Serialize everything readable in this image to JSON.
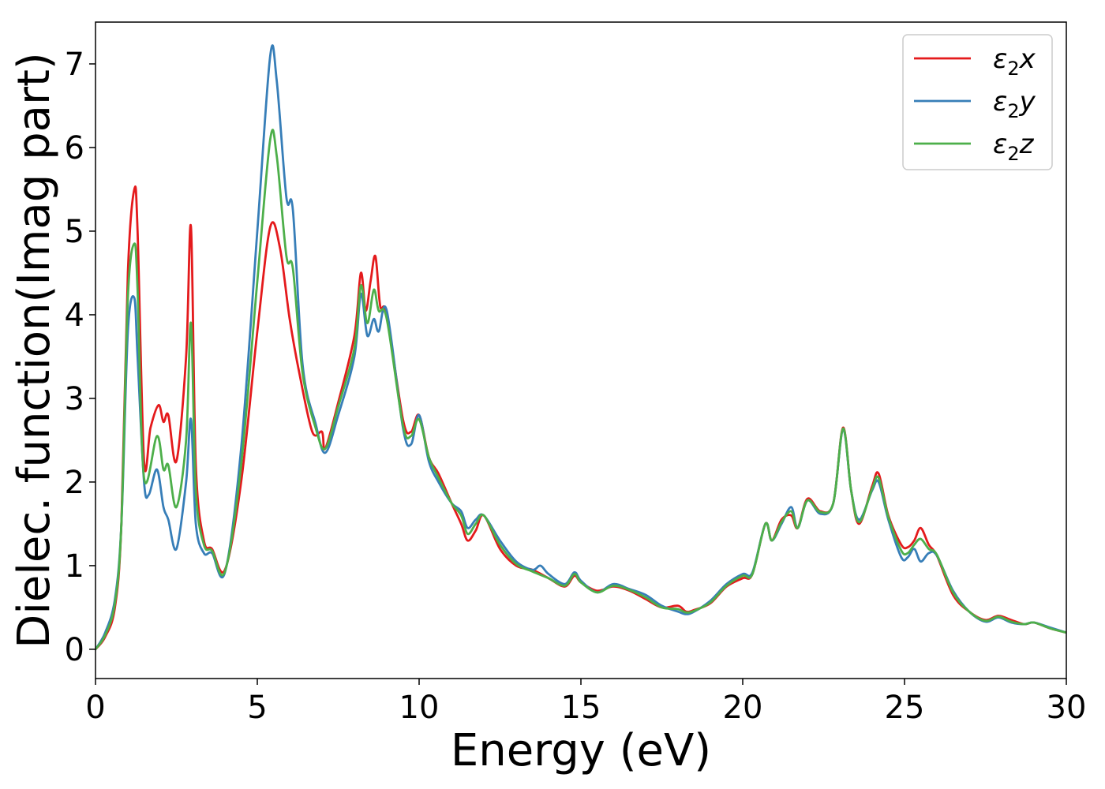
{
  "chart_data": {
    "type": "line",
    "xlabel": "Energy (eV)",
    "ylabel": "Dielec. function(Imag part)",
    "xlim": [
      0,
      30
    ],
    "ylim": [
      -0.35,
      7.5
    ],
    "xticks": [
      0,
      5,
      10,
      15,
      20,
      25,
      30
    ],
    "yticks": [
      0,
      1,
      2,
      3,
      4,
      5,
      6,
      7
    ],
    "grid": false,
    "legend_position": "top-right",
    "series": [
      {
        "name": "ε₂x",
        "legend_main": "ε",
        "legend_sub": "2",
        "legend_var": "x",
        "color": "#e41a1c",
        "x": [
          0,
          0.3,
          0.6,
          0.8,
          1.0,
          1.2,
          1.3,
          1.5,
          1.7,
          1.95,
          2.1,
          2.25,
          2.5,
          2.8,
          2.95,
          3.1,
          3.35,
          3.6,
          4.0,
          4.5,
          5.0,
          5.4,
          5.7,
          6.0,
          6.3,
          6.7,
          7.0,
          7.1,
          7.5,
          8.0,
          8.2,
          8.35,
          8.5,
          8.65,
          8.8,
          9.0,
          9.5,
          9.75,
          10.0,
          10.3,
          10.6,
          11.0,
          11.3,
          11.5,
          11.75,
          12.0,
          12.5,
          13.0,
          13.5,
          14.0,
          14.5,
          14.8,
          15.0,
          15.5,
          16.0,
          16.5,
          17.0,
          17.5,
          18.0,
          18.25,
          18.5,
          19.0,
          19.5,
          20.0,
          20.3,
          20.7,
          20.9,
          21.2,
          21.5,
          21.7,
          22.0,
          22.4,
          22.8,
          23.1,
          23.35,
          23.6,
          24.0,
          24.2,
          24.5,
          24.9,
          25.1,
          25.3,
          25.5,
          25.75,
          26.0,
          26.5,
          27.0,
          27.5,
          27.9,
          28.3,
          28.7,
          29.0,
          29.5,
          30.0
        ],
        "values": [
          0,
          0.15,
          0.5,
          1.5,
          4.5,
          5.5,
          5.0,
          2.25,
          2.65,
          2.92,
          2.72,
          2.8,
          2.25,
          3.5,
          5.05,
          2.2,
          1.3,
          1.2,
          0.95,
          2.0,
          3.8,
          5.05,
          4.8,
          3.95,
          3.3,
          2.6,
          2.6,
          2.4,
          2.95,
          3.75,
          4.5,
          4.05,
          4.4,
          4.7,
          4.1,
          4.0,
          2.75,
          2.6,
          2.8,
          2.3,
          2.1,
          1.75,
          1.5,
          1.3,
          1.42,
          1.6,
          1.2,
          1.0,
          0.95,
          0.85,
          0.75,
          0.88,
          0.8,
          0.7,
          0.75,
          0.7,
          0.6,
          0.5,
          0.52,
          0.45,
          0.47,
          0.55,
          0.75,
          0.85,
          0.9,
          1.5,
          1.3,
          1.55,
          1.6,
          1.45,
          1.8,
          1.65,
          1.75,
          2.65,
          1.9,
          1.5,
          1.95,
          2.1,
          1.6,
          1.25,
          1.22,
          1.3,
          1.45,
          1.25,
          1.12,
          0.65,
          0.45,
          0.35,
          0.4,
          0.35,
          0.3,
          0.32,
          0.25,
          0.2
        ]
      },
      {
        "name": "ε₂y",
        "legend_main": "ε",
        "legend_sub": "2",
        "legend_var": "y",
        "color": "#377eb8",
        "x": [
          0,
          0.3,
          0.6,
          0.8,
          1.0,
          1.2,
          1.3,
          1.5,
          1.65,
          1.9,
          2.1,
          2.25,
          2.5,
          2.8,
          2.95,
          3.1,
          3.35,
          3.6,
          4.0,
          4.5,
          5.0,
          5.4,
          5.6,
          5.9,
          6.1,
          6.4,
          6.8,
          7.1,
          7.5,
          8.0,
          8.2,
          8.4,
          8.6,
          8.75,
          9.0,
          9.5,
          9.75,
          10.0,
          10.3,
          10.6,
          11.0,
          11.3,
          11.5,
          11.75,
          12.0,
          12.5,
          13.0,
          13.5,
          13.75,
          14.0,
          14.5,
          14.8,
          15.0,
          15.5,
          16.0,
          16.5,
          17.0,
          17.5,
          18.0,
          18.25,
          18.5,
          19.0,
          19.5,
          20.0,
          20.3,
          20.7,
          20.9,
          21.2,
          21.5,
          21.7,
          22.0,
          22.4,
          22.8,
          23.1,
          23.35,
          23.6,
          24.0,
          24.2,
          24.5,
          24.9,
          25.1,
          25.3,
          25.5,
          25.75,
          26.0,
          26.5,
          27.0,
          27.5,
          27.9,
          28.3,
          28.7,
          29.0,
          29.5,
          30.0
        ],
        "values": [
          0,
          0.2,
          0.6,
          1.5,
          3.8,
          4.2,
          3.5,
          2.0,
          1.85,
          2.15,
          1.7,
          1.55,
          1.2,
          2.0,
          2.75,
          1.5,
          1.15,
          1.15,
          0.92,
          2.4,
          5.0,
          7.1,
          6.8,
          5.4,
          5.25,
          3.4,
          2.7,
          2.35,
          2.8,
          3.5,
          4.25,
          3.75,
          3.95,
          3.8,
          4.05,
          2.65,
          2.45,
          2.8,
          2.25,
          2.0,
          1.75,
          1.65,
          1.45,
          1.55,
          1.6,
          1.3,
          1.05,
          0.95,
          1.0,
          0.9,
          0.78,
          0.92,
          0.82,
          0.68,
          0.78,
          0.72,
          0.65,
          0.52,
          0.45,
          0.42,
          0.45,
          0.58,
          0.78,
          0.9,
          0.92,
          1.5,
          1.3,
          1.5,
          1.7,
          1.45,
          1.78,
          1.62,
          1.75,
          2.63,
          1.9,
          1.55,
          1.9,
          2.0,
          1.55,
          1.1,
          1.1,
          1.2,
          1.05,
          1.15,
          1.12,
          0.7,
          0.45,
          0.33,
          0.38,
          0.32,
          0.3,
          0.32,
          0.26,
          0.2
        ]
      },
      {
        "name": "ε₂z",
        "legend_main": "ε",
        "legend_sub": "2",
        "legend_var": "z",
        "color": "#4daf4a",
        "x": [
          0,
          0.3,
          0.6,
          0.8,
          1.0,
          1.2,
          1.3,
          1.5,
          1.9,
          2.1,
          2.25,
          2.5,
          2.8,
          2.95,
          3.1,
          3.35,
          3.6,
          4.0,
          4.5,
          5.0,
          5.4,
          5.6,
          5.9,
          6.1,
          6.4,
          6.8,
          7.1,
          7.5,
          8.0,
          8.2,
          8.4,
          8.6,
          8.75,
          9.0,
          9.5,
          9.75,
          10.0,
          10.3,
          10.6,
          11.0,
          11.3,
          11.5,
          11.75,
          12.0,
          12.5,
          13.0,
          13.5,
          14.0,
          14.5,
          14.8,
          15.0,
          15.5,
          16.0,
          16.5,
          17.0,
          17.5,
          18.0,
          18.25,
          18.5,
          19.0,
          19.5,
          20.0,
          20.3,
          20.7,
          20.9,
          21.2,
          21.5,
          21.7,
          22.0,
          22.4,
          22.8,
          23.1,
          23.35,
          23.6,
          24.0,
          24.2,
          24.5,
          24.9,
          25.1,
          25.3,
          25.5,
          25.75,
          26.0,
          26.5,
          27.0,
          27.5,
          27.9,
          28.3,
          28.7,
          29.0,
          29.5,
          30.0
        ],
        "values": [
          0,
          0.17,
          0.55,
          1.5,
          4.2,
          4.85,
          4.3,
          2.05,
          2.55,
          2.15,
          2.2,
          1.7,
          2.5,
          3.9,
          1.9,
          1.25,
          1.18,
          0.93,
          2.2,
          4.4,
          6.1,
          5.9,
          4.7,
          4.55,
          3.3,
          2.65,
          2.4,
          2.9,
          3.6,
          4.35,
          3.9,
          4.3,
          4.05,
          3.95,
          2.68,
          2.55,
          2.75,
          2.3,
          2.05,
          1.75,
          1.6,
          1.38,
          1.5,
          1.6,
          1.25,
          1.02,
          0.93,
          0.85,
          0.76,
          0.9,
          0.8,
          0.68,
          0.76,
          0.71,
          0.62,
          0.5,
          0.48,
          0.44,
          0.46,
          0.56,
          0.76,
          0.88,
          0.9,
          1.5,
          1.3,
          1.52,
          1.65,
          1.45,
          1.78,
          1.64,
          1.75,
          2.64,
          1.9,
          1.52,
          1.92,
          2.05,
          1.58,
          1.18,
          1.15,
          1.25,
          1.32,
          1.2,
          1.13,
          0.68,
          0.45,
          0.34,
          0.39,
          0.33,
          0.3,
          0.32,
          0.25,
          0.2
        ]
      }
    ]
  }
}
